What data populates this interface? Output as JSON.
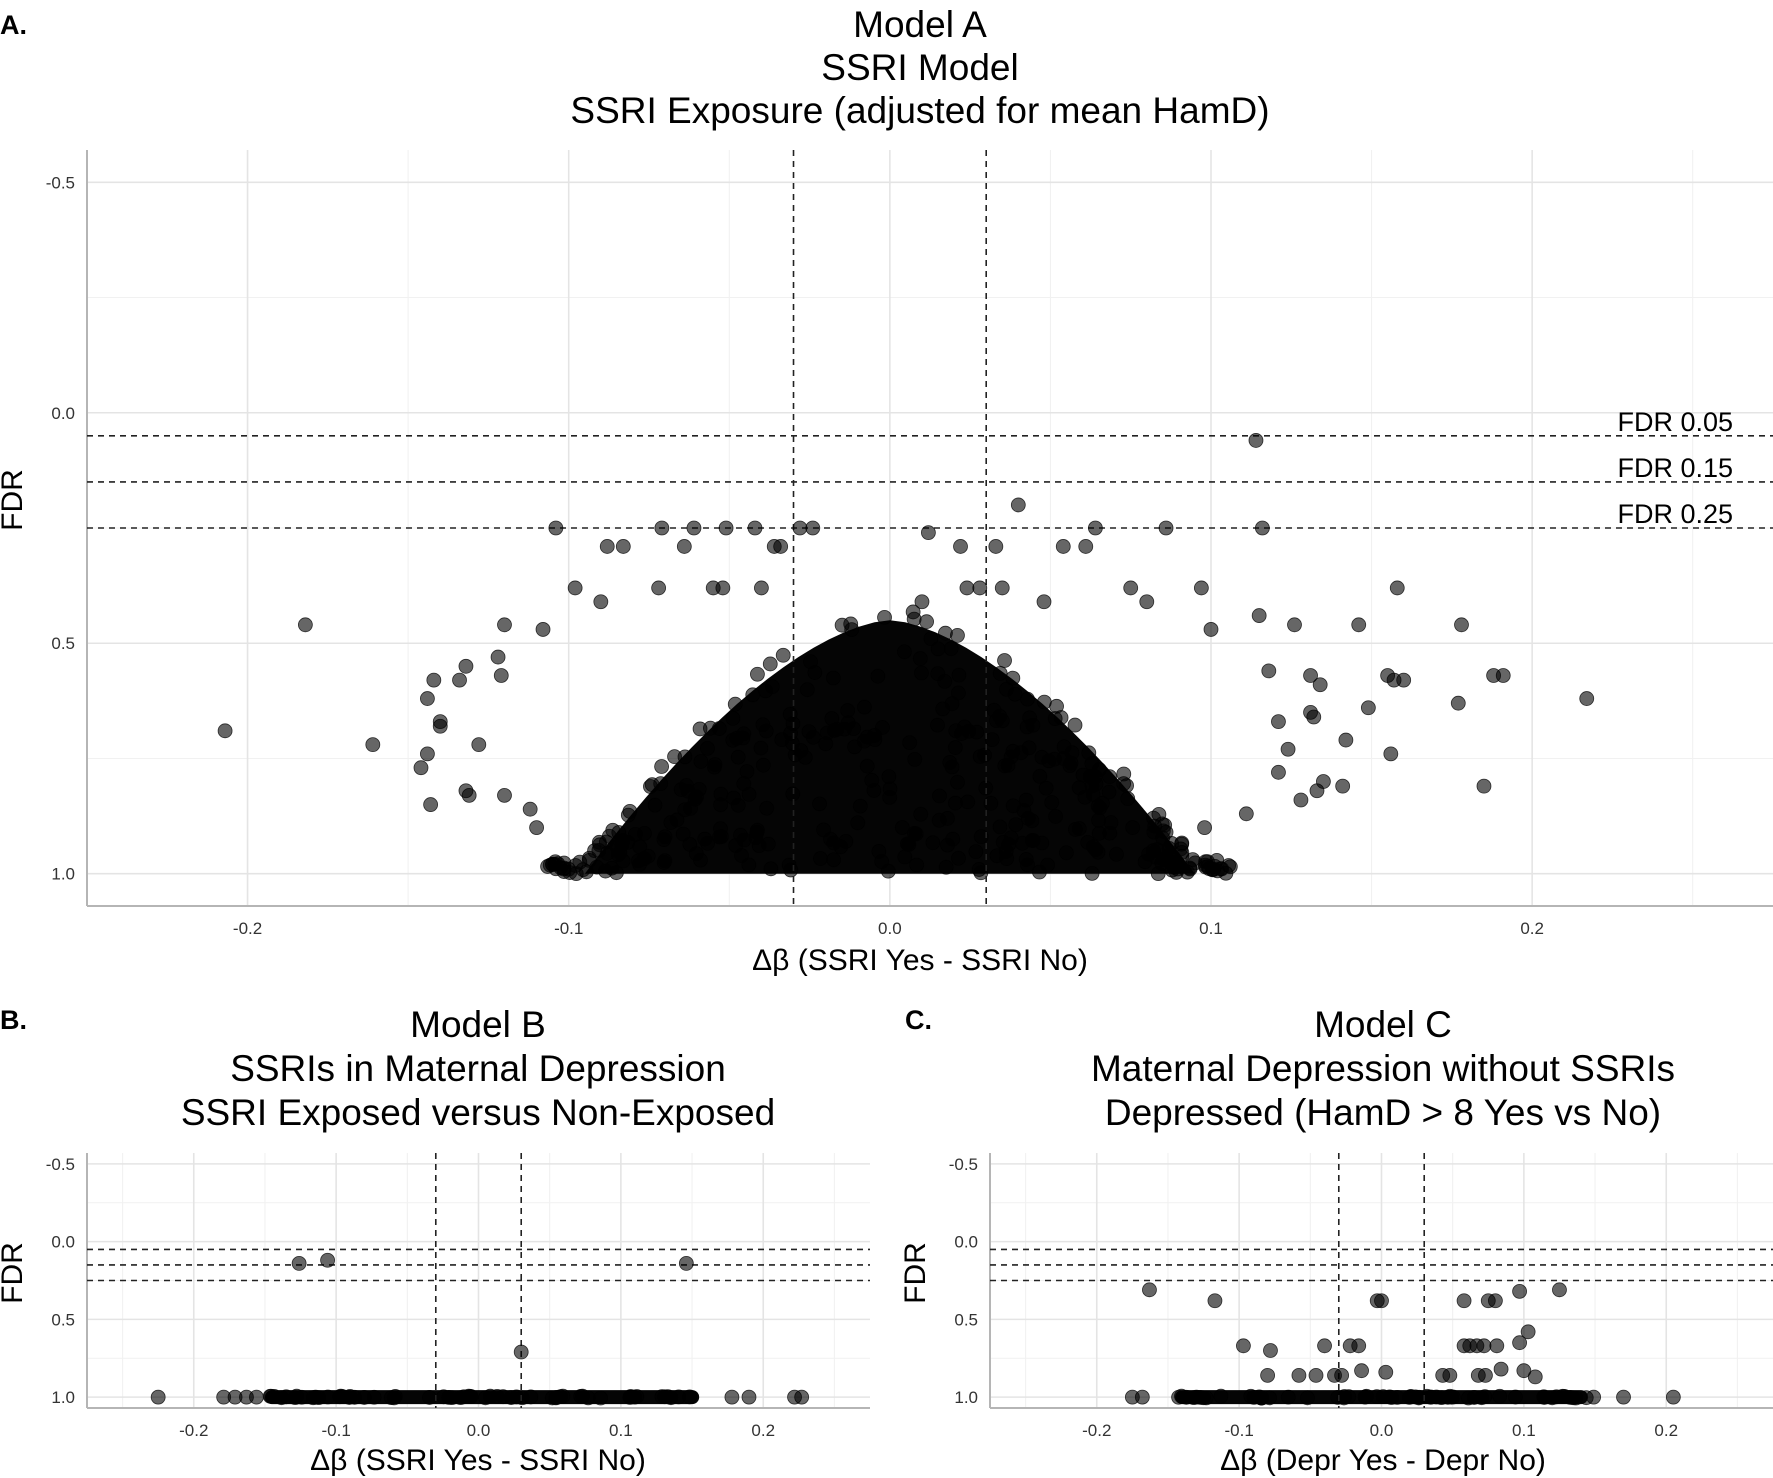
{
  "chart_data": [
    {
      "type": "scatter",
      "panel_label": "A.",
      "title_lines": [
        "Model A",
        "SSRI Model",
        "SSRI Exposure (adjusted for mean HamD)"
      ],
      "xlabel": "Δβ (SSRI Yes - SSRI No)",
      "ylabel": "FDR",
      "xlim": [
        -0.25,
        0.275
      ],
      "ylim": [
        -0.57,
        1.07
      ],
      "y_reversed": true,
      "x_ticks": [
        -0.2,
        -0.1,
        0.0,
        0.1,
        0.2
      ],
      "x_tick_labels": [
        "-0.2",
        "-0.1",
        "0.0",
        "0.1",
        "0.2"
      ],
      "y_ticks": [
        -0.5,
        0.0,
        0.5,
        1.0
      ],
      "y_tick_labels": [
        "-0.5",
        "0.0",
        "0.5",
        "1.0"
      ],
      "vlines": [
        -0.03,
        0.03
      ],
      "hlines": [
        0.05,
        0.15,
        0.25
      ],
      "hline_labels": [
        "FDR 0.05",
        "FDR 0.15",
        "FDR 0.25"
      ],
      "dense_region": {
        "x_range": [
          -0.095,
          0.095
        ],
        "fdr_top": 0.45,
        "fdr_bottom": 1.0
      },
      "points": [
        [
          0.114,
          0.06
        ],
        [
          0.04,
          0.2
        ],
        [
          -0.104,
          0.25
        ],
        [
          -0.071,
          0.25
        ],
        [
          -0.061,
          0.25
        ],
        [
          -0.051,
          0.25
        ],
        [
          -0.042,
          0.25
        ],
        [
          -0.028,
          0.25
        ],
        [
          -0.024,
          0.25
        ],
        [
          0.012,
          0.26
        ],
        [
          0.064,
          0.25
        ],
        [
          0.086,
          0.25
        ],
        [
          0.116,
          0.25
        ],
        [
          -0.088,
          0.29
        ],
        [
          -0.083,
          0.29
        ],
        [
          -0.064,
          0.29
        ],
        [
          -0.036,
          0.29
        ],
        [
          -0.034,
          0.29
        ],
        [
          0.022,
          0.29
        ],
        [
          0.033,
          0.29
        ],
        [
          0.054,
          0.29
        ],
        [
          0.061,
          0.29
        ],
        [
          -0.098,
          0.38
        ],
        [
          -0.072,
          0.38
        ],
        [
          -0.055,
          0.38
        ],
        [
          -0.052,
          0.38
        ],
        [
          -0.04,
          0.38
        ],
        [
          0.024,
          0.38
        ],
        [
          0.028,
          0.38
        ],
        [
          0.035,
          0.38
        ],
        [
          0.075,
          0.38
        ],
        [
          0.097,
          0.38
        ],
        [
          0.158,
          0.38
        ],
        [
          -0.09,
          0.41
        ],
        [
          0.01,
          0.41
        ],
        [
          0.048,
          0.41
        ],
        [
          0.08,
          0.41
        ],
        [
          -0.182,
          0.46
        ],
        [
          0.115,
          0.44
        ],
        [
          0.126,
          0.46
        ],
        [
          0.146,
          0.46
        ],
        [
          0.178,
          0.46
        ],
        [
          -0.12,
          0.46
        ],
        [
          -0.108,
          0.47
        ],
        [
          0.1,
          0.47
        ],
        [
          -0.122,
          0.53
        ],
        [
          -0.132,
          0.55
        ],
        [
          -0.121,
          0.57
        ],
        [
          -0.134,
          0.58
        ],
        [
          0.118,
          0.56
        ],
        [
          0.131,
          0.57
        ],
        [
          0.155,
          0.57
        ],
        [
          0.134,
          0.59
        ],
        [
          0.157,
          0.58
        ],
        [
          0.16,
          0.58
        ],
        [
          0.188,
          0.57
        ],
        [
          0.191,
          0.57
        ],
        [
          -0.142,
          0.58
        ],
        [
          -0.144,
          0.62
        ],
        [
          -0.14,
          0.67
        ],
        [
          -0.14,
          0.68
        ],
        [
          0.131,
          0.65
        ],
        [
          0.121,
          0.67
        ],
        [
          0.149,
          0.64
        ],
        [
          0.132,
          0.66
        ],
        [
          0.177,
          0.63
        ],
        [
          0.217,
          0.62
        ],
        [
          -0.207,
          0.69
        ],
        [
          -0.161,
          0.72
        ],
        [
          -0.144,
          0.74
        ],
        [
          -0.146,
          0.77
        ],
        [
          -0.128,
          0.72
        ],
        [
          0.124,
          0.73
        ],
        [
          0.142,
          0.71
        ],
        [
          0.156,
          0.74
        ],
        [
          0.121,
          0.78
        ],
        [
          0.135,
          0.8
        ],
        [
          -0.143,
          0.85
        ],
        [
          -0.132,
          0.82
        ],
        [
          -0.131,
          0.83
        ],
        [
          0.185,
          0.81
        ],
        [
          0.141,
          0.81
        ],
        [
          0.133,
          0.82
        ],
        [
          -0.12,
          0.83
        ],
        [
          0.128,
          0.84
        ],
        [
          -0.112,
          0.86
        ],
        [
          0.111,
          0.87
        ],
        [
          -0.11,
          0.9
        ],
        [
          0.098,
          0.9
        ],
        [
          0.086,
          0.91
        ]
      ]
    },
    {
      "type": "scatter",
      "panel_label": "B.",
      "title_lines": [
        "Model B",
        "SSRIs in Maternal Depression",
        "SSRI Exposed versus Non-Exposed"
      ],
      "xlabel": "Δβ (SSRI Yes - SSRI No)",
      "ylabel": "FDR",
      "xlim": [
        -0.275,
        0.275
      ],
      "ylim": [
        -0.57,
        1.07
      ],
      "y_reversed": true,
      "x_ticks": [
        -0.2,
        -0.1,
        0.0,
        0.1,
        0.2
      ],
      "x_tick_labels": [
        "-0.2",
        "-0.1",
        "0.0",
        "0.1",
        "0.2"
      ],
      "y_ticks": [
        -0.5,
        0.0,
        0.5,
        1.0
      ],
      "y_tick_labels": [
        "-0.5",
        "0.0",
        "0.5",
        "1.0"
      ],
      "vlines": [
        -0.03,
        0.03
      ],
      "hlines": [
        0.05,
        0.15,
        0.25
      ],
      "dense_region": {
        "x_range": [
          -0.15,
          0.155
        ],
        "fdr_top": 0.985,
        "fdr_bottom": 1.0
      },
      "points": [
        [
          -0.126,
          0.14
        ],
        [
          -0.106,
          0.12
        ],
        [
          0.146,
          0.14
        ],
        [
          0.03,
          0.71
        ],
        [
          -0.225,
          1.0
        ],
        [
          -0.179,
          1.0
        ],
        [
          -0.171,
          1.0
        ],
        [
          -0.163,
          1.0
        ],
        [
          -0.156,
          1.0
        ],
        [
          0.178,
          1.0
        ],
        [
          0.19,
          1.0
        ],
        [
          0.222,
          1.0
        ],
        [
          0.227,
          1.0
        ]
      ]
    },
    {
      "type": "scatter",
      "panel_label": "C.",
      "title_lines": [
        "Model C",
        "Maternal Depression without SSRIs",
        "Depressed (HamD > 8 Yes vs No)"
      ],
      "xlabel": "Δβ (Depr Yes - Depr No)",
      "ylabel": "FDR",
      "xlim": [
        -0.275,
        0.275
      ],
      "ylim": [
        -0.57,
        1.07
      ],
      "y_reversed": true,
      "x_ticks": [
        -0.2,
        -0.1,
        0.0,
        0.1,
        0.2
      ],
      "x_tick_labels": [
        "-0.2",
        "-0.1",
        "0.0",
        "0.1",
        "0.2"
      ],
      "y_ticks": [
        -0.5,
        0.0,
        0.5,
        1.0
      ],
      "y_tick_labels": [
        "-0.5",
        "0.0",
        "0.5",
        "1.0"
      ],
      "vlines": [
        -0.03,
        0.03
      ],
      "hlines": [
        0.05,
        0.15,
        0.25
      ],
      "dense_region": {
        "x_range": [
          -0.145,
          0.145
        ],
        "fdr_top": 0.985,
        "fdr_bottom": 1.0
      },
      "points": [
        [
          -0.163,
          0.31
        ],
        [
          -0.117,
          0.38
        ],
        [
          -0.003,
          0.38
        ],
        [
          0.0,
          0.38
        ],
        [
          0.058,
          0.38
        ],
        [
          0.075,
          0.38
        ],
        [
          0.08,
          0.38
        ],
        [
          0.097,
          0.32
        ],
        [
          0.125,
          0.31
        ],
        [
          -0.097,
          0.67
        ],
        [
          -0.078,
          0.7
        ],
        [
          -0.04,
          0.67
        ],
        [
          -0.022,
          0.67
        ],
        [
          -0.016,
          0.67
        ],
        [
          0.058,
          0.67
        ],
        [
          0.062,
          0.67
        ],
        [
          0.067,
          0.67
        ],
        [
          0.072,
          0.67
        ],
        [
          0.081,
          0.67
        ],
        [
          0.097,
          0.65
        ],
        [
          0.103,
          0.58
        ],
        [
          -0.014,
          0.83
        ],
        [
          0.003,
          0.84
        ],
        [
          -0.08,
          0.86
        ],
        [
          -0.058,
          0.86
        ],
        [
          -0.046,
          0.86
        ],
        [
          -0.033,
          0.86
        ],
        [
          -0.028,
          0.86
        ],
        [
          0.043,
          0.86
        ],
        [
          0.048,
          0.86
        ],
        [
          0.068,
          0.86
        ],
        [
          0.073,
          0.86
        ],
        [
          0.084,
          0.82
        ],
        [
          0.1,
          0.83
        ],
        [
          0.108,
          0.87
        ],
        [
          -0.13,
          1.0
        ],
        [
          -0.175,
          1.0
        ],
        [
          -0.168,
          1.0
        ],
        [
          0.149,
          1.0
        ],
        [
          0.17,
          1.0
        ],
        [
          0.205,
          1.0
        ]
      ]
    }
  ]
}
